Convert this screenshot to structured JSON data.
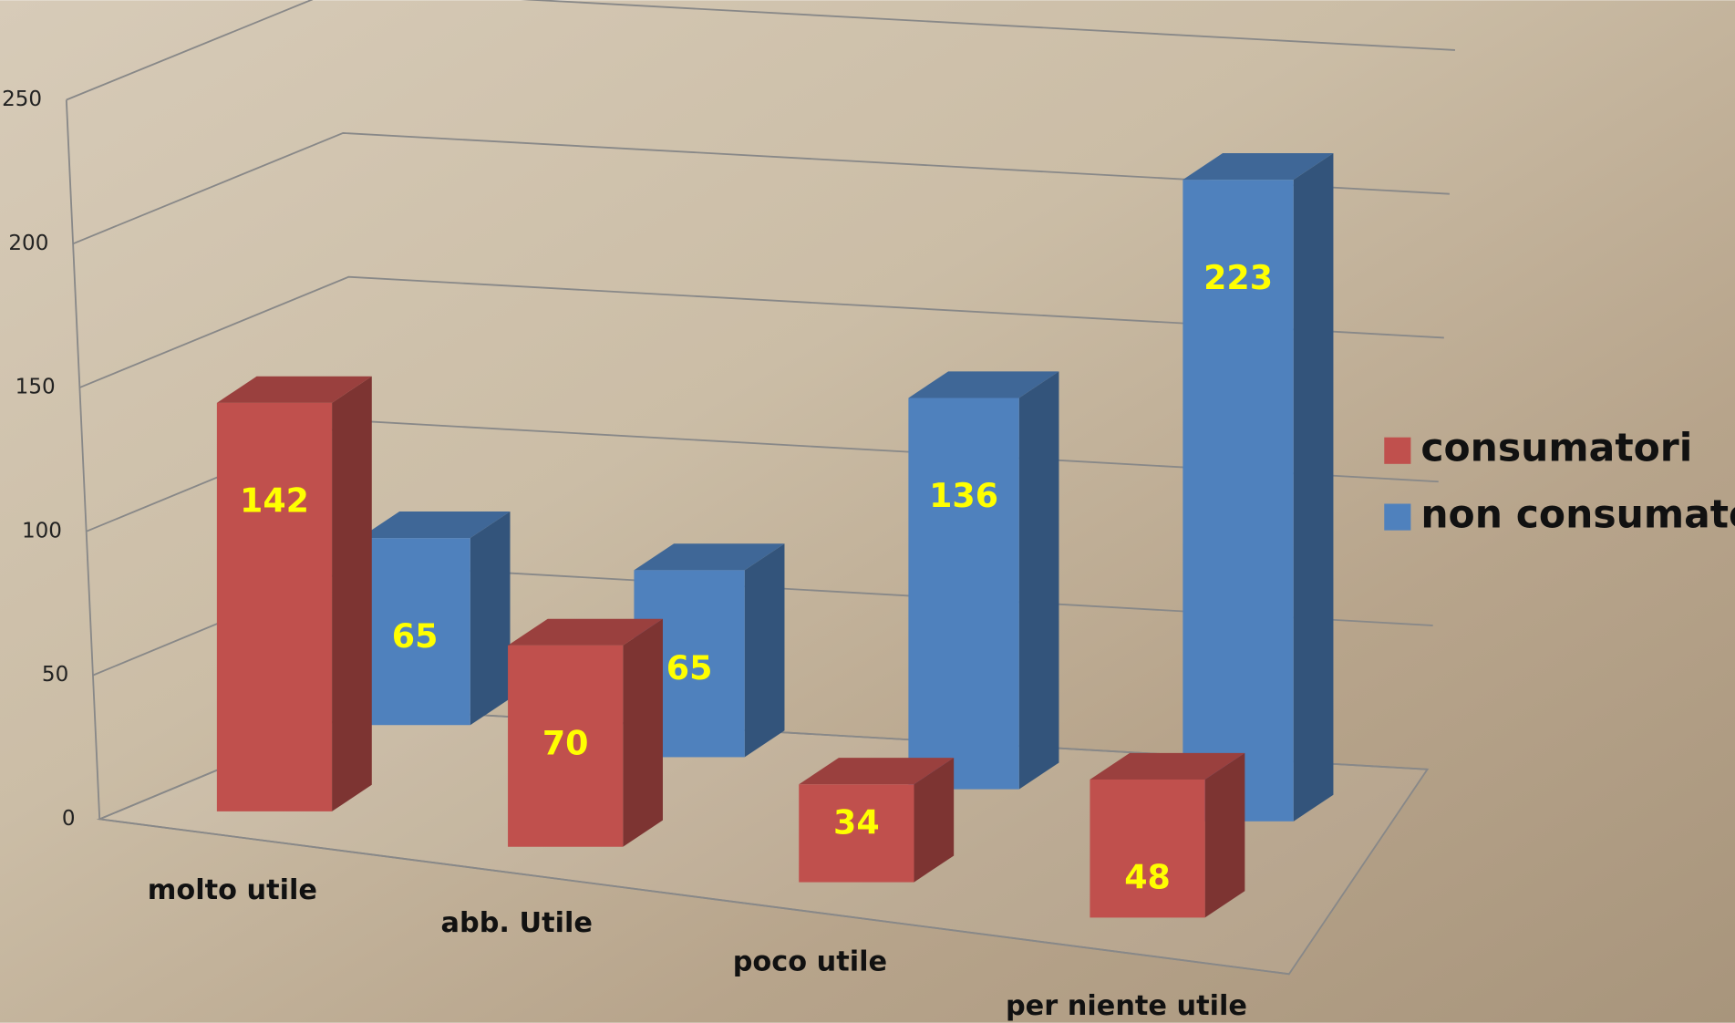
{
  "chart_data": {
    "type": "bar3d",
    "categories": [
      "molto utile",
      "abb. Utile",
      "poco utile",
      "per niente utile"
    ],
    "series": [
      {
        "name": "consumatori",
        "color": "#c0504d",
        "values": [
          142,
          70,
          34,
          48
        ]
      },
      {
        "name": "non consumatori",
        "color": "#4f81bd",
        "values": [
          65,
          65,
          136,
          223
        ]
      }
    ],
    "ylim": [
      0,
      250
    ],
    "yticks": [
      0,
      50,
      100,
      150,
      200,
      250
    ],
    "grid": true,
    "legend": "right",
    "label_color": "#ffff00"
  }
}
